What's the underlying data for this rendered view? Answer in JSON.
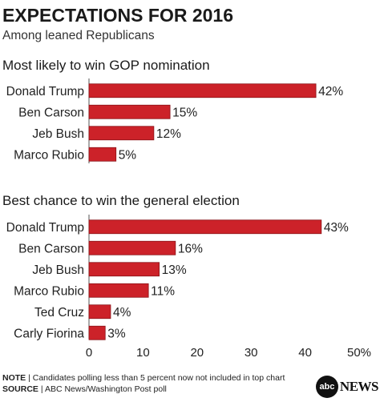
{
  "header": {
    "title": "EXPECTATIONS FOR 2016",
    "subtitle": "Among leaned Republicans"
  },
  "colors": {
    "bar": "#cc2229",
    "bar_stroke": "#8a1318",
    "axis": "#555555",
    "text": "#222222"
  },
  "chart_data": [
    {
      "type": "bar",
      "orientation": "horizontal",
      "title": "Most likely to win GOP nomination",
      "categories": [
        "Donald Trump",
        "Ben Carson",
        "Jeb Bush",
        "Marco Rubio"
      ],
      "values": [
        42,
        15,
        12,
        5
      ],
      "labels": [
        "42%",
        "15%",
        "12%",
        "5%"
      ],
      "xlim": [
        0,
        50
      ]
    },
    {
      "type": "bar",
      "orientation": "horizontal",
      "title": "Best chance to win the general election",
      "categories": [
        "Donald Trump",
        "Ben Carson",
        "Jeb Bush",
        "Marco Rubio",
        "Ted Cruz",
        "Carly Fiorina"
      ],
      "values": [
        43,
        16,
        13,
        11,
        4,
        3
      ],
      "labels": [
        "43%",
        "16%",
        "13%",
        "11%",
        "4%",
        "3%"
      ],
      "xlim": [
        0,
        50
      ],
      "xticks": [
        "0",
        "10",
        "20",
        "30",
        "40",
        "50%"
      ]
    }
  ],
  "footer": {
    "note_label": "NOTE",
    "note_text": "Candidates polling less than 5 percent now not included in top chart",
    "source_label": "SOURCE",
    "source_text": "ABC News/Washington Post poll"
  },
  "logo": {
    "mark": "abc",
    "text": "NEWS"
  }
}
